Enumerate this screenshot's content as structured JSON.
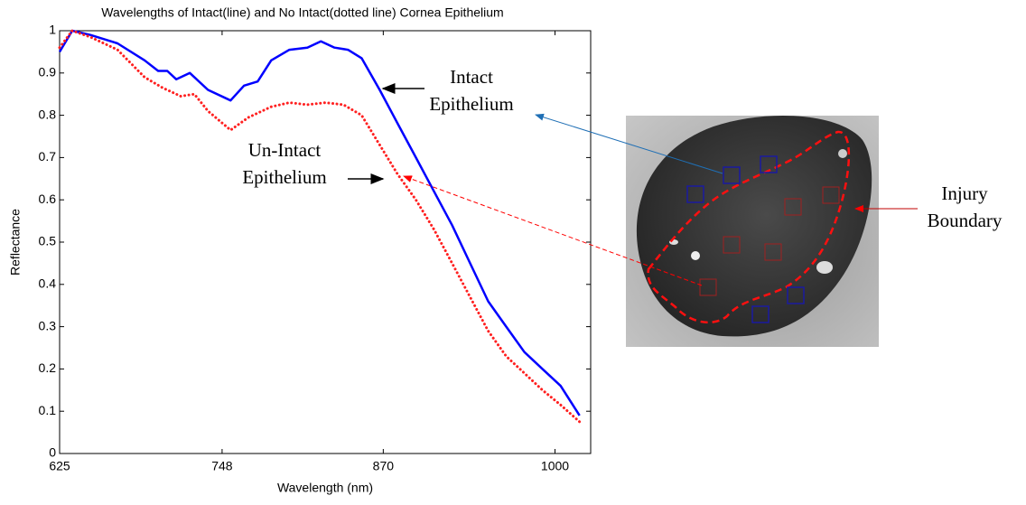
{
  "chart_data": {
    "type": "line",
    "title": "Wavelengths of Intact(line) and No Intact(dotted line) Cornea Epithelium",
    "x_label": "Wavelength (nm)",
    "y_label": "Reflectance",
    "xlim": [
      625,
      1027
    ],
    "ylim": [
      0,
      1
    ],
    "xticks": [
      625,
      748,
      870,
      1000
    ],
    "yticks": [
      0,
      0.1,
      0.2,
      0.3,
      0.4,
      0.5,
      0.6,
      0.7,
      0.8,
      0.9,
      1
    ],
    "series": [
      {
        "style": "solid",
        "color": "#0000ff",
        "x": [
          625,
          634.6,
          648.3,
          668.8,
          689.3,
          699.6,
          706.5,
          713.3,
          723.6,
          737.3,
          754.4,
          764.6,
          774.9,
          785.2,
          798.9,
          812.5,
          822.8,
          833.1,
          843.3,
          853.6,
          867.3,
          881,
          894.7,
          908.4,
          922.1,
          935.7,
          949.4,
          963.1,
          976.8,
          990.5,
          1004.2,
          1018.6
        ],
        "values": [
          0.95,
          1.0,
          0.99,
          0.97,
          0.93,
          0.905,
          0.905,
          0.885,
          0.9,
          0.86,
          0.835,
          0.87,
          0.88,
          0.93,
          0.955,
          0.96,
          0.975,
          0.96,
          0.955,
          0.935,
          0.86,
          0.78,
          0.7,
          0.62,
          0.54,
          0.45,
          0.36,
          0.3,
          0.24,
          0.2,
          0.16,
          0.09
        ]
      },
      {
        "style": "dotted",
        "color": "#ff2020",
        "x": [
          625,
          634.6,
          648.3,
          668.8,
          689.3,
          703,
          716.7,
          727,
          737.3,
          754.4,
          768,
          785.2,
          798.9,
          812.5,
          826.2,
          839.9,
          853.6,
          867.3,
          881,
          894.7,
          908.4,
          922.1,
          935.7,
          949.4,
          963.1,
          976.8,
          990.5,
          1004.2,
          1018.6
        ],
        "values": [
          0.96,
          1.0,
          0.985,
          0.955,
          0.89,
          0.865,
          0.845,
          0.85,
          0.81,
          0.765,
          0.795,
          0.82,
          0.83,
          0.825,
          0.83,
          0.825,
          0.8,
          0.73,
          0.66,
          0.6,
          0.53,
          0.45,
          0.37,
          0.29,
          0.23,
          0.19,
          0.15,
          0.115,
          0.075
        ]
      }
    ],
    "annotations": [
      {
        "lines": [
          "Intact",
          "Epithelium"
        ]
      },
      {
        "lines": [
          "Un-Intact",
          "Epithelium"
        ]
      },
      {
        "lines": [
          "Injury",
          "Boundary"
        ]
      }
    ]
  }
}
